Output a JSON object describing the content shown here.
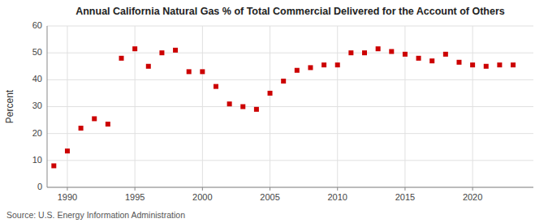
{
  "chart_data": {
    "type": "scatter",
    "title": "Annual California Natural Gas % of Total Commercial Delivered for the Account of Others",
    "ylabel": "Percent",
    "annotations": [
      "Source: U.S. Energy Information Administration"
    ],
    "x": [
      1989,
      1990,
      1991,
      1992,
      1993,
      1994,
      1995,
      1996,
      1997,
      1998,
      1999,
      2000,
      2001,
      2002,
      2003,
      2004,
      2005,
      2006,
      2007,
      2008,
      2009,
      2010,
      2011,
      2012,
      2013,
      2014,
      2015,
      2016,
      2017,
      2018,
      2019,
      2020,
      2021,
      2022,
      2023
    ],
    "values": [
      8.0,
      13.5,
      22.0,
      25.5,
      23.5,
      48.0,
      51.5,
      45.0,
      50.0,
      51.0,
      43.0,
      43.0,
      37.5,
      31.0,
      30.0,
      29.0,
      35.0,
      39.5,
      43.5,
      44.5,
      45.5,
      45.5,
      50.0,
      50.0,
      51.5,
      50.5,
      49.5,
      48.0,
      47.0,
      49.5,
      46.5,
      45.5,
      45.0,
      45.5,
      45.5
    ],
    "color": "#cc0000",
    "marker": "square",
    "xlim": [
      1988.5,
      2024.5
    ],
    "ylim": [
      0,
      60
    ],
    "xticks": [
      1990,
      1995,
      2000,
      2005,
      2010,
      2015,
      2020
    ],
    "yticks": [
      0,
      10,
      20,
      30,
      40,
      50,
      60
    ],
    "grid": true
  }
}
